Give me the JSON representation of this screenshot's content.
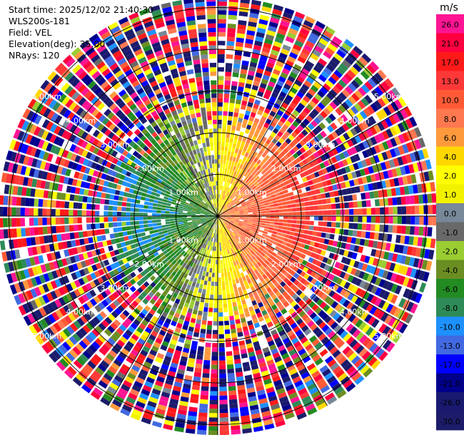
{
  "info": {
    "start_time": "Start time: 2025/12/02 21:40:30",
    "instrument": "WLS200s-181",
    "field": "Field: VEL",
    "elevation": "Elevation(deg): 35.00",
    "nrays": "NRays: 120"
  },
  "colorbar": {
    "unit": "m/s",
    "levels": [
      {
        "label": "26.0",
        "color": "#ff1493"
      },
      {
        "label": "21.0",
        "color": "#ff0040"
      },
      {
        "label": "17.0",
        "color": "#ff1a1a"
      },
      {
        "label": "13.0",
        "color": "#ff3838"
      },
      {
        "label": "10.0",
        "color": "#ff5a36"
      },
      {
        "label": "8.0",
        "color": "#ff7850"
      },
      {
        "label": "6.0",
        "color": "#ff9a3c"
      },
      {
        "label": "4.0",
        "color": "#ffd700"
      },
      {
        "label": "2.0",
        "color": "#ffff00"
      },
      {
        "label": "1.0",
        "color": "#f2f200"
      },
      {
        "label": "0.0",
        "color": "#778899"
      },
      {
        "label": "-1.0",
        "color": "#696969"
      },
      {
        "label": "-2.0",
        "color": "#9acd32"
      },
      {
        "label": "-4.0",
        "color": "#6b8e23"
      },
      {
        "label": "-6.0",
        "color": "#228b22"
      },
      {
        "label": "-8.0",
        "color": "#2e8b57"
      },
      {
        "label": "-10.0",
        "color": "#1e90ff"
      },
      {
        "label": "-13.0",
        "color": "#4169e1"
      },
      {
        "label": "-17.0",
        "color": "#0000ff"
      },
      {
        "label": "-21.0",
        "color": "#00008b"
      },
      {
        "label": "-26.0",
        "color": "#191970"
      },
      {
        "label": "-30.0",
        "color": "#1c1c6b"
      }
    ]
  },
  "chart_data": {
    "type": "heatmap",
    "projection": "polar (PPI)",
    "field": "VEL",
    "units": "m/s",
    "range_rings_km": [
      1,
      2,
      3,
      4,
      5
    ],
    "range_ring_labels": [
      "1.00km",
      "2.00km",
      "3.00km",
      "4.00km",
      "5.00km"
    ],
    "max_range_km": 5.25,
    "azimuth_spokes_deg": [
      0,
      30,
      60,
      90,
      120,
      150,
      180,
      210,
      240,
      270,
      300,
      330
    ],
    "value_range": [
      -30,
      30
    ],
    "pattern": {
      "near_field_km": 2.7,
      "structure": "dipole: positive (toward east, yellow-orange-red), negative (toward west, green-blue)",
      "far_field": "noisy / random velocities beyond ~2.7 km"
    }
  }
}
